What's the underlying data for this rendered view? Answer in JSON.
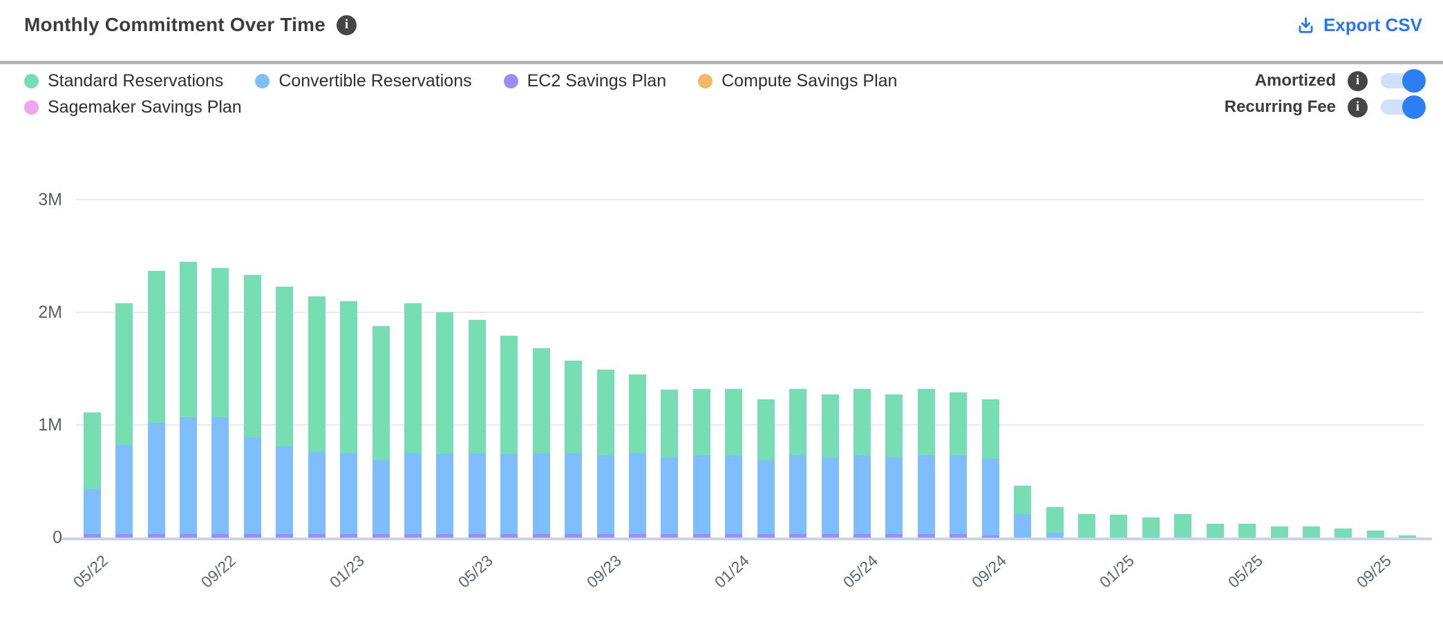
{
  "header": {
    "title": "Monthly Commitment Over Time",
    "export_label": "Export CSV"
  },
  "controls": {
    "toggles": [
      {
        "label": "Amortized",
        "state": "on"
      },
      {
        "label": "Recurring Fee",
        "state": "on"
      }
    ]
  },
  "colors": {
    "export_blue": "#2577f0",
    "toggle_on": "#2b7ff2",
    "toggle_track": "#cfe0f9",
    "info_icon_bg": "#454545",
    "gridline": "#e9e9e9",
    "axis_line": "#c9d4e8",
    "standard": "#77ddb2",
    "convertible": "#7ebefc",
    "ec2_sp": "#9c8cf9",
    "compute_sp": "#f4b860",
    "sagemaker_sp": "#f0a6ec"
  },
  "chart_data": {
    "type": "bar",
    "stacked": true,
    "title": "Monthly Commitment Over Time",
    "xlabel": "",
    "ylabel": "",
    "unit": "millions",
    "ylim": [
      0,
      3000000
    ],
    "y_ticks": [
      "0",
      "1M",
      "2M",
      "3M"
    ],
    "grid": true,
    "legend_position": "top-left",
    "x": [
      "05/22",
      "06/22",
      "07/22",
      "08/22",
      "09/22",
      "10/22",
      "11/22",
      "12/22",
      "01/23",
      "02/23",
      "03/23",
      "04/23",
      "05/23",
      "06/23",
      "07/23",
      "08/23",
      "09/23",
      "10/23",
      "11/23",
      "12/23",
      "01/24",
      "02/24",
      "03/24",
      "04/24",
      "05/24",
      "06/24",
      "07/24",
      "08/24",
      "09/24",
      "10/24",
      "11/24",
      "12/24",
      "01/25",
      "02/25",
      "03/25",
      "04/25",
      "05/25",
      "06/25",
      "07/25",
      "08/25",
      "09/25",
      "10/25"
    ],
    "x_tick_labels": [
      "05/22",
      "09/22",
      "01/23",
      "05/23",
      "09/23",
      "01/24",
      "05/24",
      "09/24",
      "01/25",
      "05/25",
      "09/25"
    ],
    "stack_order_bottom_to_top": [
      "Sagemaker Savings Plan",
      "EC2 Savings Plan",
      "Compute Savings Plan",
      "Convertible Reservations",
      "Standard Reservations"
    ],
    "values_unit_note": "values in millions (M)",
    "series": [
      {
        "name": "Standard Reservations",
        "color": "#77ddb2",
        "values": [
          0.68,
          1.26,
          1.35,
          1.38,
          1.32,
          1.44,
          1.42,
          1.38,
          1.35,
          1.19,
          1.33,
          1.26,
          1.18,
          1.05,
          0.93,
          0.82,
          0.76,
          0.7,
          0.6,
          0.59,
          0.59,
          0.54,
          0.59,
          0.56,
          0.59,
          0.56,
          0.59,
          0.56,
          0.53,
          0.25,
          0.23,
          0.21,
          0.2,
          0.18,
          0.21,
          0.12,
          0.12,
          0.1,
          0.1,
          0.08,
          0.06,
          0.02
        ]
      },
      {
        "name": "Convertible Reservations",
        "color": "#7ebefc",
        "values": [
          0.4,
          0.79,
          0.99,
          1.04,
          1.04,
          0.86,
          0.78,
          0.73,
          0.72,
          0.66,
          0.72,
          0.71,
          0.72,
          0.71,
          0.72,
          0.72,
          0.7,
          0.72,
          0.68,
          0.7,
          0.7,
          0.66,
          0.7,
          0.68,
          0.7,
          0.68,
          0.7,
          0.7,
          0.68,
          0.21,
          0.04,
          0,
          0,
          0,
          0,
          0,
          0,
          0,
          0,
          0,
          0,
          0
        ]
      },
      {
        "name": "EC2 Savings Plan",
        "color": "#9c8cf9",
        "values": [
          0.03,
          0.03,
          0.03,
          0.03,
          0.03,
          0.03,
          0.03,
          0.03,
          0.03,
          0.03,
          0.03,
          0.03,
          0.03,
          0.03,
          0.03,
          0.03,
          0.03,
          0.03,
          0.03,
          0.03,
          0.03,
          0.03,
          0.03,
          0.03,
          0.03,
          0.03,
          0.03,
          0.03,
          0.02,
          0,
          0,
          0,
          0,
          0,
          0,
          0,
          0,
          0,
          0,
          0,
          0,
          0
        ]
      },
      {
        "name": "Compute Savings Plan",
        "color": "#f4b860",
        "values": [
          0,
          0,
          0,
          0,
          0,
          0,
          0,
          0,
          0,
          0,
          0,
          0,
          0,
          0,
          0,
          0,
          0,
          0,
          0,
          0,
          0,
          0,
          0,
          0,
          0,
          0,
          0,
          0,
          0,
          0,
          0,
          0,
          0,
          0,
          0,
          0,
          0,
          0,
          0,
          0,
          0,
          0
        ]
      },
      {
        "name": "Sagemaker Savings Plan",
        "color": "#f0a6ec",
        "values": [
          0,
          0,
          0,
          0,
          0,
          0,
          0,
          0,
          0,
          0,
          0,
          0,
          0,
          0,
          0,
          0,
          0,
          0,
          0,
          0,
          0,
          0,
          0,
          0,
          0,
          0,
          0,
          0,
          0,
          0,
          0,
          0,
          0,
          0,
          0,
          0,
          0,
          0,
          0,
          0,
          0,
          0
        ]
      }
    ]
  }
}
